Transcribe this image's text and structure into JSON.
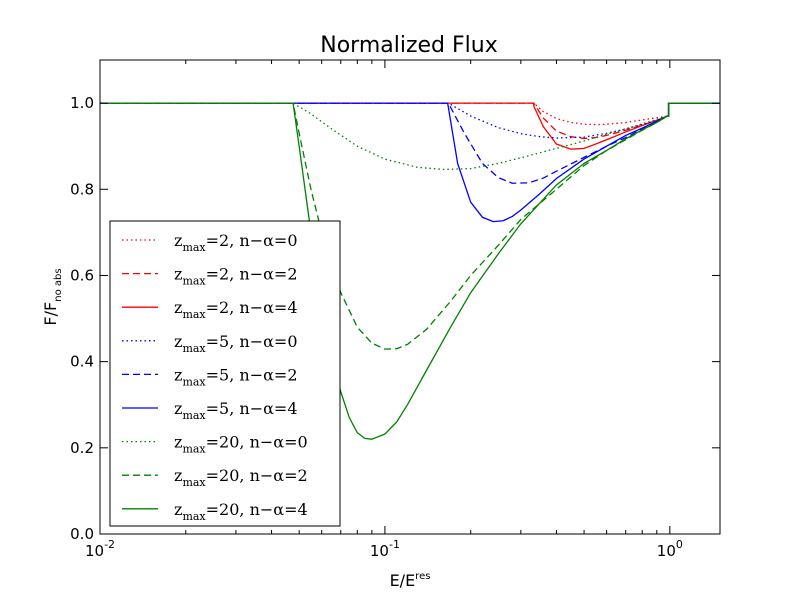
{
  "chart_data": {
    "type": "line",
    "title": "Normalized Flux",
    "xlabel": {
      "main": "E/E",
      "sup": "res"
    },
    "ylabel": {
      "main": "F/F",
      "sub": "no abs"
    },
    "xscale": "log",
    "xlim": [
      0.01,
      1.5
    ],
    "ylim": [
      0.0,
      1.1
    ],
    "xticks": [
      {
        "value": 0.01,
        "base": "10",
        "exp": "-2"
      },
      {
        "value": 0.1,
        "base": "10",
        "exp": "-1"
      },
      {
        "value": 1.0,
        "base": "10",
        "exp": "0"
      }
    ],
    "yticks": [
      0.0,
      0.2,
      0.4,
      0.6,
      0.8,
      1.0
    ],
    "ytick_labels": [
      "0.0",
      "0.2",
      "0.4",
      "0.6",
      "0.8",
      "1.0"
    ],
    "grid": false,
    "legend_position": "lower-left",
    "colors": {
      "red": "#ff0000",
      "blue": "#0000ff",
      "green": "#008000"
    },
    "series": [
      {
        "name_zmax": "2",
        "name_n": "0",
        "color": "#ff0000",
        "dash": "dotted",
        "x": [
          0.01,
          0.333,
          0.36,
          0.4,
          0.45,
          0.5,
          0.55,
          0.6,
          0.7,
          0.8,
          0.9,
          0.98,
          0.99,
          0.99,
          1.5
        ],
        "y": [
          1.0,
          1.0,
          0.98,
          0.964,
          0.955,
          0.951,
          0.95,
          0.951,
          0.955,
          0.961,
          0.966,
          0.97,
          0.97,
          1.0,
          1.0
        ]
      },
      {
        "name_zmax": "2",
        "name_n": "2",
        "color": "#ff0000",
        "dash": "dashed",
        "x": [
          0.01,
          0.333,
          0.36,
          0.4,
          0.45,
          0.5,
          0.55,
          0.6,
          0.7,
          0.8,
          0.9,
          0.98,
          0.99,
          0.99,
          1.5
        ],
        "y": [
          1.0,
          1.0,
          0.965,
          0.935,
          0.922,
          0.918,
          0.92,
          0.925,
          0.937,
          0.949,
          0.96,
          0.97,
          0.97,
          1.0,
          1.0
        ]
      },
      {
        "name_zmax": "2",
        "name_n": "4",
        "color": "#ff0000",
        "dash": "solid",
        "x": [
          0.01,
          0.333,
          0.333,
          0.36,
          0.4,
          0.45,
          0.5,
          0.55,
          0.6,
          0.7,
          0.8,
          0.9,
          0.98,
          0.99,
          0.99,
          1.5
        ],
        "y": [
          1.0,
          1.0,
          0.993,
          0.945,
          0.905,
          0.893,
          0.895,
          0.905,
          0.915,
          0.933,
          0.948,
          0.96,
          0.97,
          0.97,
          1.0,
          1.0
        ]
      },
      {
        "name_zmax": "5",
        "name_n": "0",
        "color": "#0000ff",
        "dash": "dotted",
        "x": [
          0.01,
          0.167,
          0.2,
          0.25,
          0.3,
          0.35,
          0.4,
          0.5,
          0.6,
          0.7,
          0.8,
          0.9,
          0.98,
          0.99,
          0.99,
          1.5
        ],
        "y": [
          1.0,
          1.0,
          0.97,
          0.943,
          0.929,
          0.922,
          0.919,
          0.921,
          0.93,
          0.94,
          0.95,
          0.96,
          0.97,
          0.97,
          1.0,
          1.0
        ]
      },
      {
        "name_zmax": "5",
        "name_n": "2",
        "color": "#0000ff",
        "dash": "dashed",
        "x": [
          0.01,
          0.167,
          0.19,
          0.22,
          0.25,
          0.28,
          0.32,
          0.36,
          0.4,
          0.5,
          0.6,
          0.7,
          0.8,
          0.9,
          0.98,
          0.99,
          0.99,
          1.5
        ],
        "y": [
          1.0,
          1.0,
          0.93,
          0.86,
          0.827,
          0.814,
          0.815,
          0.826,
          0.842,
          0.874,
          0.9,
          0.92,
          0.94,
          0.957,
          0.97,
          0.97,
          1.0,
          1.0
        ]
      },
      {
        "name_zmax": "5",
        "name_n": "4",
        "color": "#0000ff",
        "dash": "solid",
        "x": [
          0.01,
          0.166,
          0.167,
          0.18,
          0.2,
          0.22,
          0.24,
          0.26,
          0.28,
          0.3,
          0.35,
          0.4,
          0.5,
          0.6,
          0.7,
          0.8,
          0.9,
          0.98,
          0.99,
          0.99,
          1.5
        ],
        "y": [
          1.0,
          1.0,
          0.99,
          0.86,
          0.77,
          0.735,
          0.725,
          0.727,
          0.737,
          0.752,
          0.79,
          0.825,
          0.87,
          0.9,
          0.925,
          0.942,
          0.958,
          0.97,
          0.97,
          1.0,
          1.0
        ]
      },
      {
        "name_zmax": "20",
        "name_n": "0",
        "color": "#008000",
        "dash": "dotted",
        "x": [
          0.01,
          0.0476,
          0.055,
          0.065,
          0.08,
          0.1,
          0.13,
          0.16,
          0.2,
          0.25,
          0.3,
          0.4,
          0.5,
          0.6,
          0.7,
          0.8,
          0.9,
          0.98,
          0.99,
          0.99,
          1.5
        ],
        "y": [
          1.0,
          1.0,
          0.975,
          0.94,
          0.9,
          0.87,
          0.851,
          0.846,
          0.848,
          0.86,
          0.873,
          0.895,
          0.912,
          0.928,
          0.94,
          0.952,
          0.962,
          0.97,
          0.97,
          1.0,
          1.0
        ]
      },
      {
        "name_zmax": "20",
        "name_n": "2",
        "color": "#008000",
        "dash": "dashed",
        "x": [
          0.01,
          0.0476,
          0.05,
          0.055,
          0.06,
          0.07,
          0.08,
          0.09,
          0.1,
          0.11,
          0.12,
          0.14,
          0.17,
          0.2,
          0.25,
          0.3,
          0.4,
          0.5,
          0.6,
          0.7,
          0.8,
          0.9,
          0.98,
          0.99,
          0.99,
          1.5
        ],
        "y": [
          1.0,
          1.0,
          0.93,
          0.8,
          0.7,
          0.56,
          0.48,
          0.443,
          0.429,
          0.43,
          0.44,
          0.475,
          0.54,
          0.6,
          0.67,
          0.73,
          0.8,
          0.855,
          0.89,
          0.915,
          0.937,
          0.955,
          0.97,
          0.97,
          1.0,
          1.0
        ]
      },
      {
        "name_zmax": "20",
        "name_n": "4",
        "color": "#008000",
        "dash": "solid",
        "x": [
          0.01,
          0.0476,
          0.05,
          0.055,
          0.06,
          0.065,
          0.07,
          0.075,
          0.08,
          0.085,
          0.09,
          0.1,
          0.11,
          0.12,
          0.14,
          0.17,
          0.2,
          0.25,
          0.3,
          0.4,
          0.5,
          0.6,
          0.7,
          0.8,
          0.9,
          0.98,
          0.99,
          0.99,
          1.5
        ],
        "y": [
          1.0,
          1.0,
          0.9,
          0.7,
          0.53,
          0.41,
          0.33,
          0.27,
          0.235,
          0.222,
          0.22,
          0.232,
          0.26,
          0.3,
          0.38,
          0.48,
          0.56,
          0.65,
          0.72,
          0.81,
          0.86,
          0.89,
          0.917,
          0.938,
          0.955,
          0.97,
          0.97,
          1.0,
          1.0
        ]
      }
    ],
    "legend": {
      "z_sym": "z",
      "z_sub": "max",
      "eq": "=",
      "sep": ", ",
      "n_label": "n",
      "minus": "−",
      "alpha": "α"
    }
  }
}
